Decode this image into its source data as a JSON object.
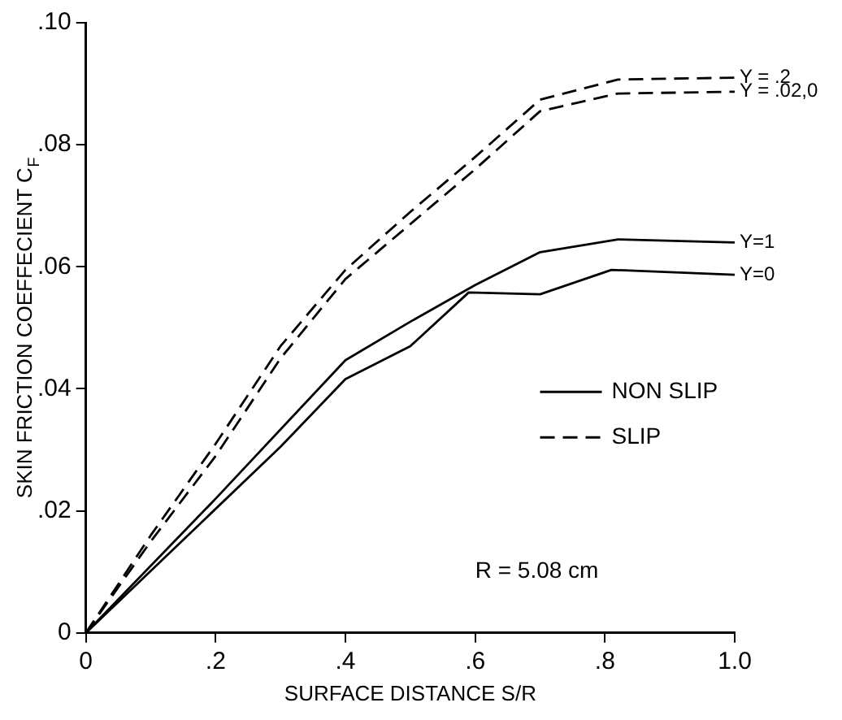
{
  "chart_data": {
    "type": "line",
    "xlabel": "SURFACE DISTANCE S/R",
    "ylabel": "SKIN FRICTION COEFFECIENT C$_{F}$",
    "xlim": [
      0,
      1.0
    ],
    "xticks": [
      0,
      {
        "value": 0.2,
        "label": ".2"
      },
      {
        "value": 0.4,
        "label": ".4"
      },
      {
        "value": 0.6,
        "label": ".6"
      },
      {
        "value": 0.8,
        "label": ".8"
      },
      {
        "value": 1.0,
        "label": "1.0"
      }
    ],
    "ylim": [
      0,
      0.1
    ],
    "yticks": [
      0,
      {
        "value": 0.02,
        "label": ".02"
      },
      {
        "value": 0.04,
        "label": ".04"
      },
      {
        "value": 0.06,
        "label": ".06"
      },
      {
        "value": 0.08,
        "label": ".08"
      },
      {
        "value": 0.1,
        "label": ".10"
      }
    ],
    "grid": false,
    "legend": false,
    "marker": "none",
    "series": [
      {
        "name": "Y = .2",
        "color": "#000000",
        "line_style": "dashed",
        "x": [
          0,
          0.1,
          0.2,
          0.3,
          0.4,
          0.5,
          0.6,
          0.7,
          0.82,
          1.0
        ],
        "values": [
          0,
          0.016,
          0.031,
          0.047,
          0.0595,
          0.069,
          0.078,
          0.0874,
          0.0907,
          0.091
        ]
      },
      {
        "name": "Y = .02,0",
        "color": "#000000",
        "line_style": "dashed",
        "x": [
          0,
          0.1,
          0.2,
          0.3,
          0.4,
          0.5,
          0.6,
          0.7,
          0.82,
          1.0
        ],
        "values": [
          0,
          0.015,
          0.029,
          0.045,
          0.058,
          0.067,
          0.076,
          0.0855,
          0.0884,
          0.0887
        ]
      },
      {
        "name": "Y=1",
        "color": "#000000",
        "line_style": "solid",
        "x": [
          0,
          0.2,
          0.4,
          0.5,
          0.6,
          0.7,
          0.82,
          1.0
        ],
        "values": [
          0,
          0.022,
          0.0447,
          0.051,
          0.057,
          0.0624,
          0.0645,
          0.064
        ]
      },
      {
        "name": "Y=0",
        "color": "#000000",
        "line_style": "solid",
        "x": [
          0,
          0.3,
          0.4,
          0.5,
          0.59,
          0.7,
          0.81,
          1.0
        ],
        "values": [
          0,
          0.0305,
          0.0416,
          0.047,
          0.0558,
          0.0555,
          0.0595,
          0.0587
        ]
      }
    ],
    "annotations": [
      "NON SLIP",
      "SLIP",
      "R = 5.08 cm"
    ]
  }
}
